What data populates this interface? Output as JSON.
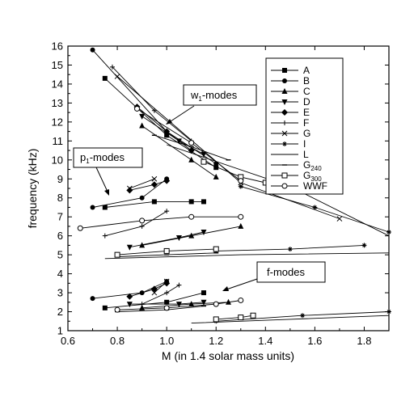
{
  "chart_data": {
    "type": "scatter",
    "xlabel": "M (in 1.4 solar mass units)",
    "ylabel": "frequency (kHz)",
    "xlim": [
      0.6,
      1.9
    ],
    "ylim": [
      1,
      16
    ],
    "x_ticks": [
      "0.6",
      "0.8",
      "1.0",
      "1.2",
      "1.4",
      "1.6",
      "1.8"
    ],
    "y_ticks": [
      "1",
      "2",
      "3",
      "4",
      "5",
      "6",
      "7",
      "8",
      "9",
      "10",
      "11",
      "12",
      "13",
      "14",
      "15",
      "16"
    ],
    "grid": false,
    "legend_position": "top-right",
    "legend": [
      {
        "label": "A",
        "marker": "square-filled"
      },
      {
        "label": "B",
        "marker": "circle-filled"
      },
      {
        "label": "C",
        "marker": "triangle-up-filled"
      },
      {
        "label": "D",
        "marker": "triangle-down-filled"
      },
      {
        "label": "E",
        "marker": "diamond-filled"
      },
      {
        "label": "F",
        "marker": "plus"
      },
      {
        "label": "G",
        "marker": "x"
      },
      {
        "label": "I",
        "marker": "star"
      },
      {
        "label": "L",
        "marker": "none"
      },
      {
        "label": "G",
        "sub": "240",
        "marker": "dash"
      },
      {
        "label": "G",
        "sub": "300",
        "marker": "square-open"
      },
      {
        "label": "WWF",
        "marker": "circle-open"
      }
    ],
    "annotations": [
      {
        "text": "w",
        "sub": "1",
        "suffix": "-modes",
        "box": true
      },
      {
        "text": "p",
        "sub": "1",
        "suffix": "-modes",
        "box": true
      },
      {
        "text": "f-modes",
        "sub": "",
        "suffix": "",
        "box": true
      }
    ],
    "series": [
      {
        "name": "A",
        "marker": "square-filled",
        "groups": [
          [
            [
              0.75,
              14.3
            ],
            [
              1.0,
              11.3
            ],
            [
              1.2,
              9.6
            ]
          ],
          [
            [
              0.75,
              7.5
            ],
            [
              0.95,
              7.8
            ],
            [
              1.1,
              7.8
            ],
            [
              1.15,
              7.8
            ]
          ],
          [
            [
              0.75,
              2.2
            ],
            [
              1.0,
              2.5
            ],
            [
              1.15,
              3.0
            ]
          ]
        ]
      },
      {
        "name": "B",
        "marker": "circle-filled",
        "groups": [
          [
            [
              0.7,
              15.8
            ],
            [
              1.0,
              11.5
            ],
            [
              1.2,
              9.8
            ]
          ],
          [
            [
              0.7,
              7.5
            ],
            [
              0.9,
              8.0
            ],
            [
              1.0,
              9.0
            ]
          ],
          [
            [
              0.7,
              2.7
            ],
            [
              0.9,
              3.0
            ],
            [
              1.0,
              3.6
            ]
          ]
        ]
      },
      {
        "name": "C",
        "marker": "triangle-up-filled",
        "groups": [
          [
            [
              0.9,
              11.8
            ],
            [
              1.1,
              10.0
            ],
            [
              1.2,
              9.1
            ]
          ],
          [
            [
              0.9,
              5.5
            ],
            [
              1.1,
              6.0
            ],
            [
              1.3,
              6.5
            ]
          ],
          [
            [
              0.9,
              2.2
            ],
            [
              1.1,
              2.4
            ],
            [
              1.25,
              2.5
            ]
          ]
        ]
      },
      {
        "name": "D",
        "marker": "triangle-down-filled",
        "groups": [
          [
            [
              0.9,
              12.3
            ],
            [
              1.05,
              11.0
            ],
            [
              1.15,
              10.3
            ]
          ],
          [
            [
              0.85,
              5.4
            ],
            [
              1.05,
              5.9
            ],
            [
              1.15,
              6.2
            ]
          ],
          [
            [
              0.85,
              2.4
            ],
            [
              1.05,
              2.4
            ],
            [
              1.15,
              2.5
            ]
          ]
        ]
      },
      {
        "name": "E",
        "marker": "diamond-filled",
        "groups": [
          [
            [
              0.88,
              12.8
            ],
            [
              1.0,
              11.5
            ],
            [
              1.1,
              10.5
            ]
          ],
          [
            [
              0.85,
              8.4
            ],
            [
              0.95,
              8.7
            ],
            [
              1.0,
              8.9
            ]
          ],
          [
            [
              0.85,
              2.8
            ],
            [
              0.95,
              3.2
            ],
            [
              1.0,
              3.5
            ]
          ]
        ]
      },
      {
        "name": "F",
        "marker": "plus",
        "groups": [
          [
            [
              0.78,
              14.9
            ],
            [
              0.95,
              12.6
            ],
            [
              1.1,
              11.0
            ]
          ],
          [
            [
              0.75,
              6.0
            ],
            [
              0.9,
              6.5
            ],
            [
              1.0,
              7.3
            ]
          ],
          [
            [
              0.9,
              2.4
            ],
            [
              1.0,
              3.0
            ],
            [
              1.05,
              3.4
            ]
          ]
        ]
      },
      {
        "name": "G",
        "marker": "x",
        "groups": [
          [
            [
              0.8,
              14.4
            ],
            [
              1.3,
              8.8
            ],
            [
              1.7,
              6.9
            ]
          ],
          [
            [
              0.85,
              8.5
            ],
            [
              0.95,
              9.0
            ]
          ],
          [
            [
              0.95,
              3.0
            ],
            [
              1.0,
              3.6
            ]
          ]
        ]
      },
      {
        "name": "I",
        "marker": "star",
        "groups": [
          [
            [
              1.3,
              8.6
            ],
            [
              1.6,
              7.5
            ],
            [
              1.9,
              6.2
            ]
          ],
          [
            [
              1.2,
              5.2
            ],
            [
              1.5,
              5.3
            ],
            [
              1.8,
              5.5
            ]
          ],
          [
            [
              1.2,
              1.5
            ],
            [
              1.55,
              1.8
            ],
            [
              1.9,
              2.0
            ]
          ]
        ]
      },
      {
        "name": "L",
        "marker": "none",
        "groups": [
          [
            [
              1.0,
              10.8
            ],
            [
              1.5,
              8.6
            ],
            [
              1.9,
              6.0
            ]
          ],
          [
            [
              0.75,
              4.8
            ],
            [
              1.3,
              5.0
            ],
            [
              1.9,
              5.1
            ]
          ],
          [
            [
              1.1,
              1.4
            ],
            [
              1.5,
              1.6
            ],
            [
              1.9,
              1.8
            ]
          ]
        ]
      },
      {
        "name": "G240",
        "marker": "dash",
        "groups": [
          [
            [
              0.95,
              11.3
            ],
            [
              1.1,
              10.7
            ],
            [
              1.25,
              10.0
            ]
          ],
          [
            [
              0.8,
              4.9
            ],
            [
              1.0,
              5.0
            ],
            [
              1.2,
              5.1
            ]
          ],
          [
            [
              0.8,
              2.0
            ],
            [
              1.0,
              2.1
            ],
            [
              1.15,
              2.3
            ]
          ]
        ]
      },
      {
        "name": "G300",
        "marker": "square-open",
        "groups": [
          [
            [
              1.15,
              9.9
            ],
            [
              1.3,
              9.1
            ],
            [
              1.4,
              8.8
            ]
          ],
          [
            [
              0.8,
              5.0
            ],
            [
              1.0,
              5.2
            ],
            [
              1.2,
              5.3
            ]
          ],
          [
            [
              1.2,
              1.6
            ],
            [
              1.3,
              1.7
            ],
            [
              1.35,
              1.8
            ]
          ]
        ]
      },
      {
        "name": "WWF",
        "marker": "circle-open",
        "groups": [
          [
            [
              0.88,
              12.7
            ],
            [
              1.1,
              10.9
            ],
            [
              1.3,
              8.9
            ]
          ],
          [
            [
              0.65,
              6.4
            ],
            [
              0.9,
              6.8
            ],
            [
              1.1,
              7.0
            ],
            [
              1.3,
              7.0
            ]
          ],
          [
            [
              0.8,
              2.1
            ],
            [
              1.0,
              2.2
            ],
            [
              1.2,
              2.4
            ],
            [
              1.3,
              2.6
            ]
          ]
        ]
      }
    ]
  }
}
